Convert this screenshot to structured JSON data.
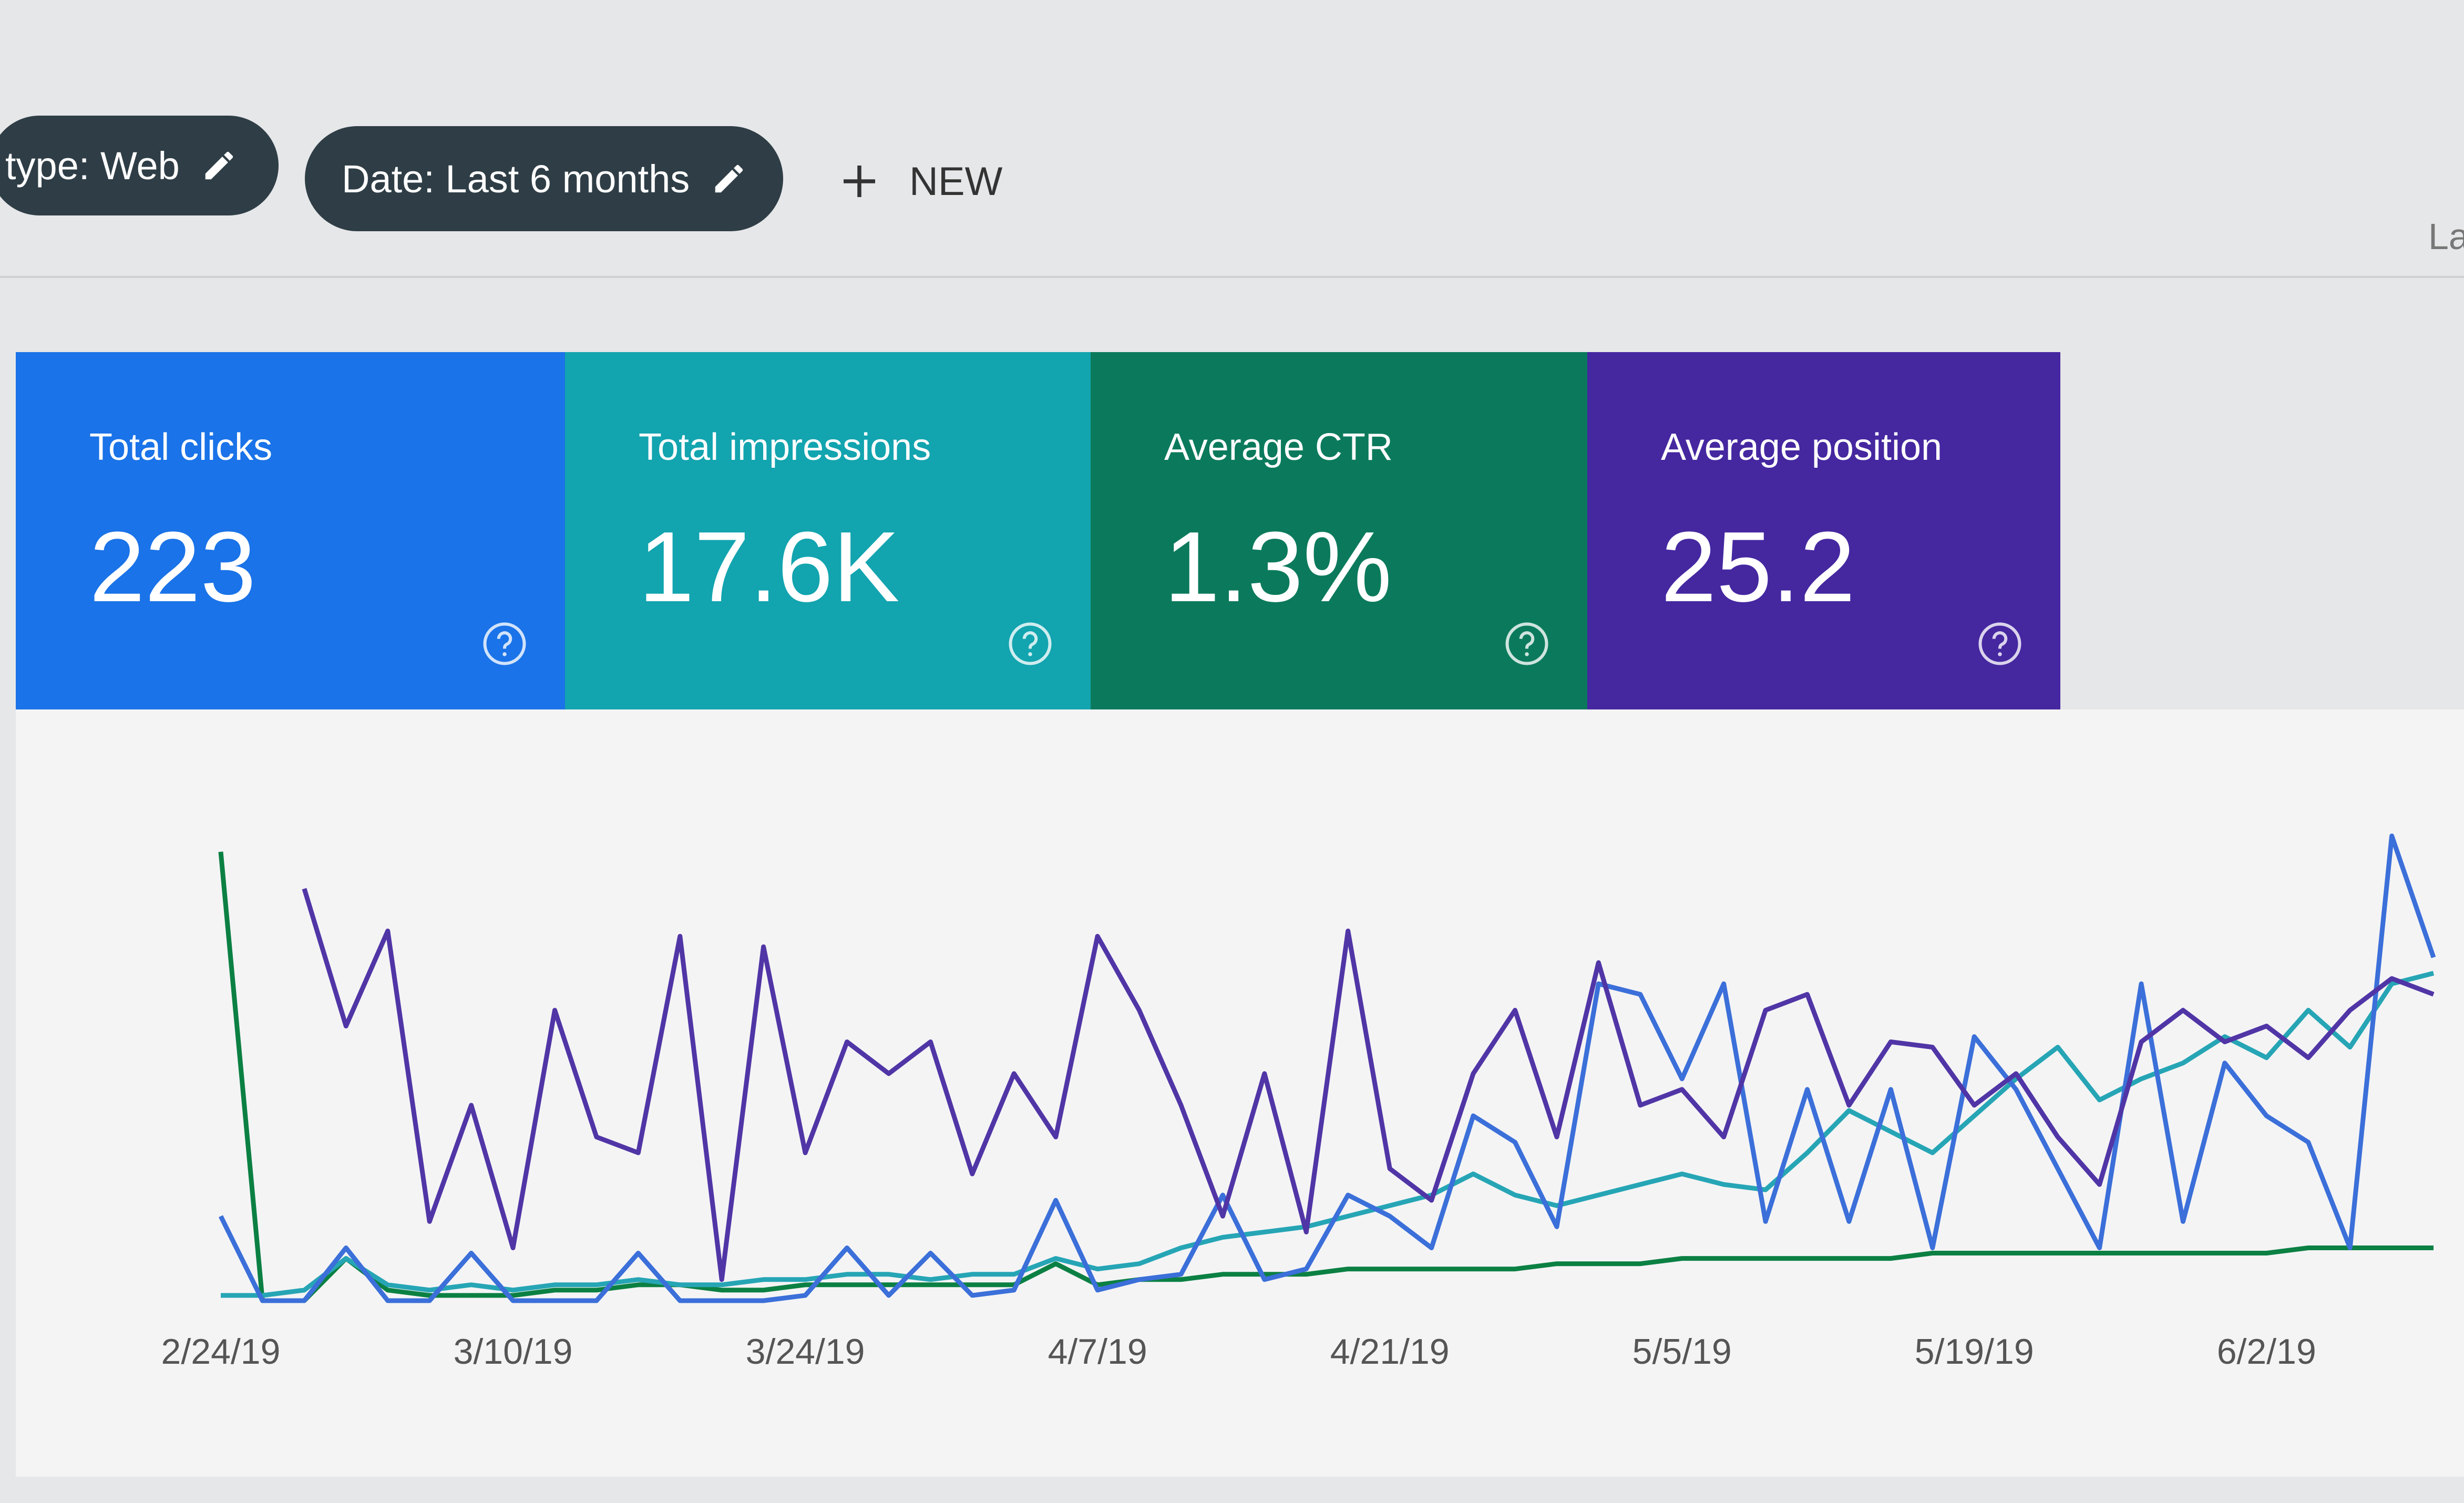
{
  "header": {
    "filters": [
      "type: Web",
      "Date: Last 6 months"
    ],
    "new_button": "NEW",
    "cutoff_text": "La"
  },
  "metrics": [
    {
      "label": "Total clicks",
      "value": "223",
      "color": "#1a73e8"
    },
    {
      "label": "Total impressions",
      "value": "17.6K",
      "color": "#12a4af"
    },
    {
      "label": "Average CTR",
      "value": "1.3%",
      "color": "#0b7a5c"
    },
    {
      "label": "Average position",
      "value": "25.2",
      "color": "#4527a0"
    }
  ],
  "chart_data": {
    "type": "line",
    "categories": [
      "2/24/19",
      null,
      null,
      null,
      null,
      null,
      null,
      "3/10/19",
      null,
      null,
      null,
      null,
      null,
      null,
      "3/24/19",
      null,
      null,
      null,
      null,
      null,
      null,
      "4/7/19",
      null,
      null,
      null,
      null,
      null,
      null,
      "4/21/19",
      null,
      null,
      null,
      null,
      null,
      null,
      "5/5/19",
      null,
      null,
      null,
      null,
      null,
      null,
      "5/19/19",
      null,
      null,
      null,
      null,
      null,
      null,
      "6/2/19",
      null,
      null,
      null,
      null
    ],
    "ylim": [
      0,
      100
    ],
    "series": [
      {
        "color": "#0b8043",
        "values": [
          85,
          0,
          0,
          8,
          2,
          1,
          1,
          1,
          2,
          2,
          3,
          3,
          2,
          2,
          3,
          3,
          3,
          3,
          3,
          3,
          7,
          3,
          4,
          4,
          5,
          5,
          5,
          6,
          6,
          6,
          6,
          6,
          7,
          7,
          7,
          8,
          8,
          8,
          8,
          8,
          8,
          9,
          9,
          9,
          9,
          9,
          9,
          9,
          9,
          9,
          10,
          10,
          10,
          10
        ]
      },
      {
        "color": "#26a5b5",
        "values": [
          1,
          1,
          2,
          8,
          3,
          2,
          3,
          2,
          3,
          3,
          4,
          3,
          3,
          4,
          4,
          5,
          5,
          4,
          5,
          5,
          8,
          6,
          7,
          10,
          12,
          13,
          14,
          16,
          18,
          20,
          24,
          20,
          18,
          20,
          22,
          24,
          22,
          21,
          28,
          36,
          32,
          28,
          35,
          42,
          48,
          38,
          42,
          45,
          50,
          46,
          55,
          48,
          60,
          62
        ]
      },
      {
        "color": "#3b6fd9",
        "values": [
          16,
          0,
          0,
          10,
          0,
          0,
          9,
          0,
          0,
          0,
          9,
          0,
          0,
          0,
          1,
          10,
          1,
          9,
          1,
          2,
          19,
          2,
          4,
          5,
          20,
          4,
          6,
          20,
          16,
          10,
          35,
          30,
          14,
          60,
          58,
          42,
          60,
          15,
          40,
          15,
          40,
          10,
          50,
          40,
          25,
          10,
          60,
          15,
          45,
          35,
          30,
          10,
          88,
          65
        ]
      },
      {
        "color": "#5035a6",
        "values": [
          null,
          null,
          78,
          52,
          70,
          15,
          37,
          10,
          55,
          31,
          28,
          69,
          4,
          67,
          28,
          49,
          43,
          49,
          24,
          43,
          31,
          69,
          55,
          37,
          16,
          43,
          13,
          70,
          25,
          19,
          43,
          55,
          31,
          64,
          37,
          40,
          31,
          55,
          58,
          37,
          49,
          48,
          37,
          43,
          31,
          22,
          49,
          55,
          49,
          52,
          46,
          55,
          61,
          58
        ]
      }
    ]
  }
}
